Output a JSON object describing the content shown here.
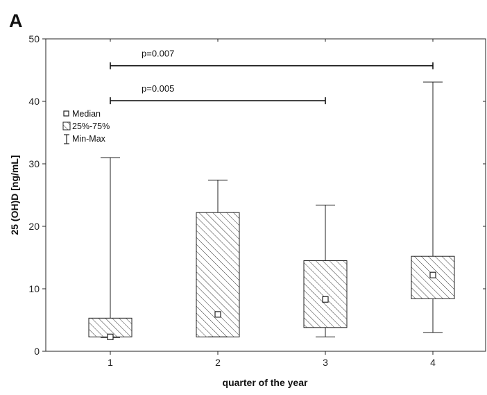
{
  "panel_label": "A",
  "chart_data": {
    "type": "box",
    "title": "",
    "xlabel": "quarter of the year",
    "ylabel": "25 (OH)D [ng/mL]",
    "categories": [
      "1",
      "2",
      "3",
      "4"
    ],
    "ylim": [
      0,
      50
    ],
    "yticks": [
      "0",
      "10",
      "20",
      "30",
      "40",
      "50"
    ],
    "grid": false,
    "legend_position": "top-left",
    "legend": [
      {
        "symbol": "median-square",
        "label": "Median"
      },
      {
        "symbol": "hatched-box",
        "label": "25%-75%"
      },
      {
        "symbol": "whisker",
        "label": "Min-Max"
      }
    ],
    "boxes": [
      {
        "category": "1",
        "min": 2.2,
        "q1": 2.3,
        "median": 2.3,
        "q3": 5.3,
        "max": 31.0
      },
      {
        "category": "2",
        "min": 2.3,
        "q1": 2.3,
        "median": 5.9,
        "q3": 22.2,
        "max": 27.4
      },
      {
        "category": "3",
        "min": 2.3,
        "q1": 3.8,
        "median": 8.3,
        "q3": 14.5,
        "max": 23.4
      },
      {
        "category": "4",
        "min": 3.0,
        "q1": 8.4,
        "median": 12.2,
        "q3": 15.2,
        "max": 43.1
      }
    ],
    "annotations": [
      {
        "text": "p=0.007",
        "from": "1",
        "to": "4",
        "y": 45.7
      },
      {
        "text": "p=0.005",
        "from": "1",
        "to": "3",
        "y": 40.1
      }
    ]
  }
}
